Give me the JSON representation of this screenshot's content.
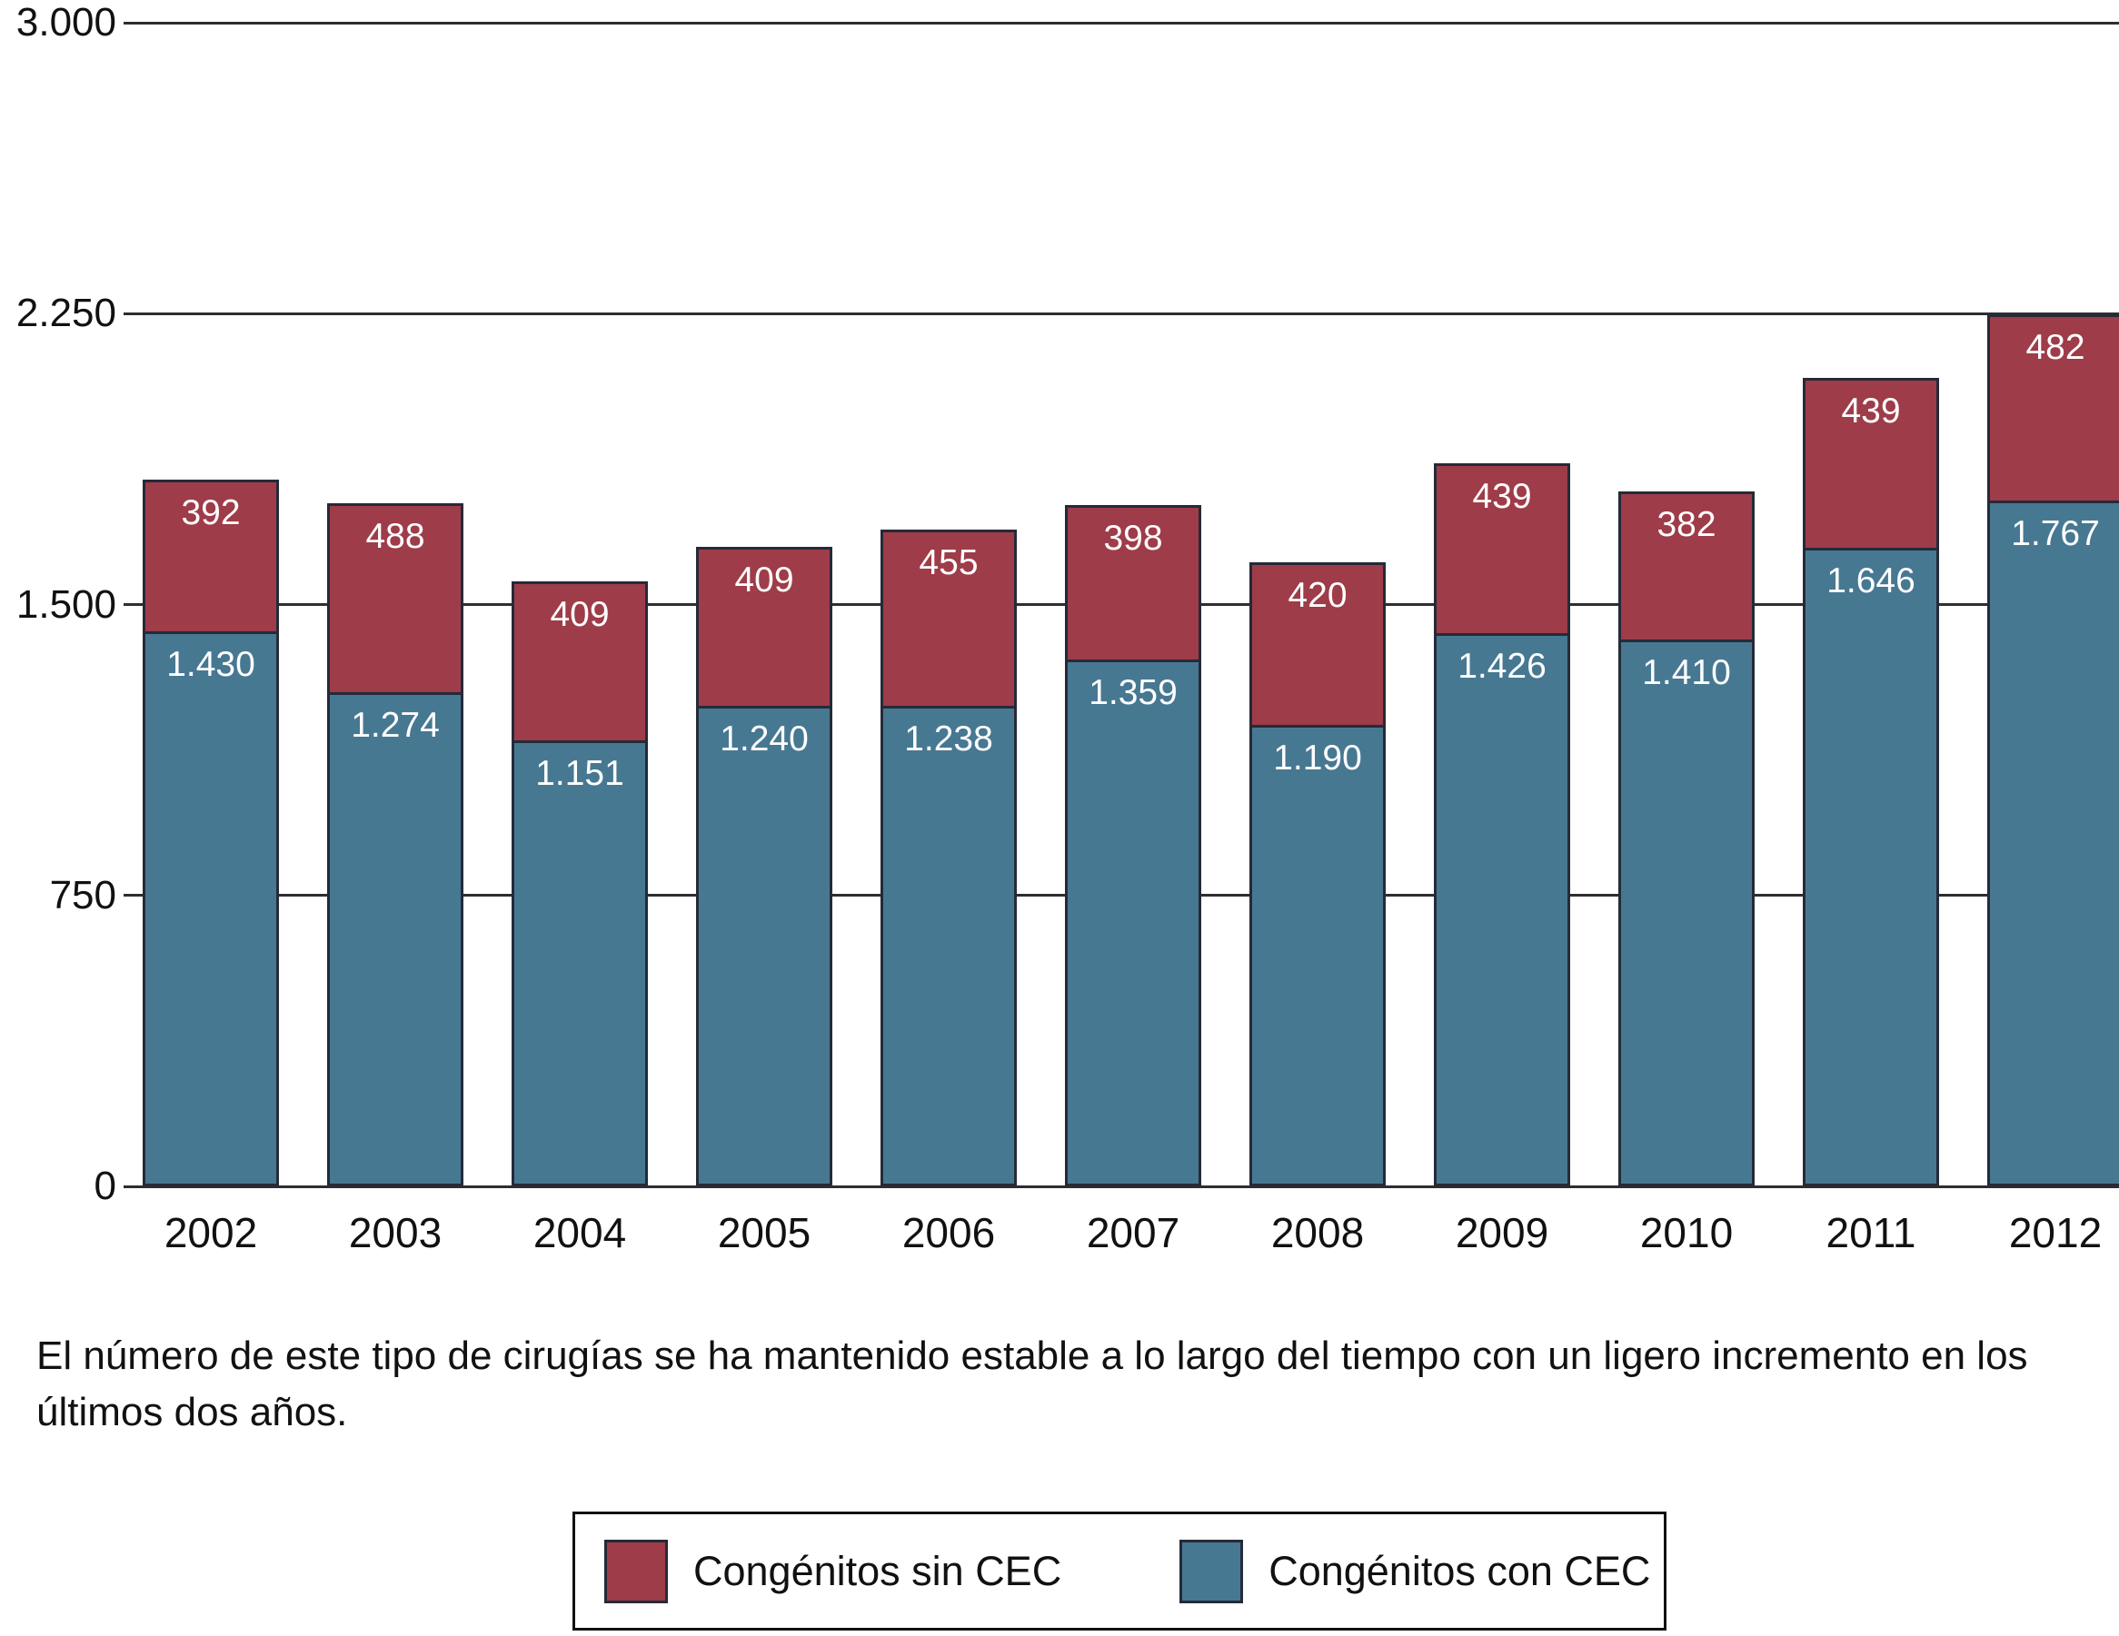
{
  "chart_data": {
    "type": "bar",
    "stacked": true,
    "title": "",
    "xlabel": "",
    "ylabel": "",
    "ylim": [
      0,
      3000
    ],
    "grid": true,
    "legend_position": "bottom",
    "categories": [
      "2002",
      "2003",
      "2004",
      "2005",
      "2006",
      "2007",
      "2008",
      "2009",
      "2010",
      "2011",
      "2012"
    ],
    "series": [
      {
        "name": "Congénitos con CEC",
        "color": "#477892",
        "values": [
          1430,
          1274,
          1151,
          1240,
          1238,
          1359,
          1190,
          1426,
          1410,
          1646,
          1767
        ],
        "labels": [
          "1.430",
          "1.274",
          "1.151",
          "1.240",
          "1.238",
          "1.359",
          "1.190",
          "1.426",
          "1.410",
          "1.646",
          "1.767"
        ]
      },
      {
        "name": "Congénitos sin CEC",
        "color": "#9e3c49",
        "values": [
          392,
          488,
          409,
          409,
          455,
          398,
          420,
          439,
          382,
          439,
          482
        ],
        "labels": [
          "392",
          "488",
          "409",
          "409",
          "455",
          "398",
          "420",
          "439",
          "382",
          "439",
          "482"
        ]
      }
    ],
    "yticks": [
      {
        "value": 0,
        "label": "0"
      },
      {
        "value": 750,
        "label": "750"
      },
      {
        "value": 1500,
        "label": "1.500"
      },
      {
        "value": 2250,
        "label": "2.250"
      },
      {
        "value": 3000,
        "label": "3.000"
      }
    ]
  },
  "caption": "El número de este tipo de cirugías se ha mantenido estable a lo largo del tiempo con un ligero incremento en los últimos dos años.",
  "legend": {
    "items": [
      {
        "label": "Congénitos sin CEC",
        "color": "#9e3c49"
      },
      {
        "label": "Congénitos con CEC",
        "color": "#477892"
      }
    ]
  }
}
